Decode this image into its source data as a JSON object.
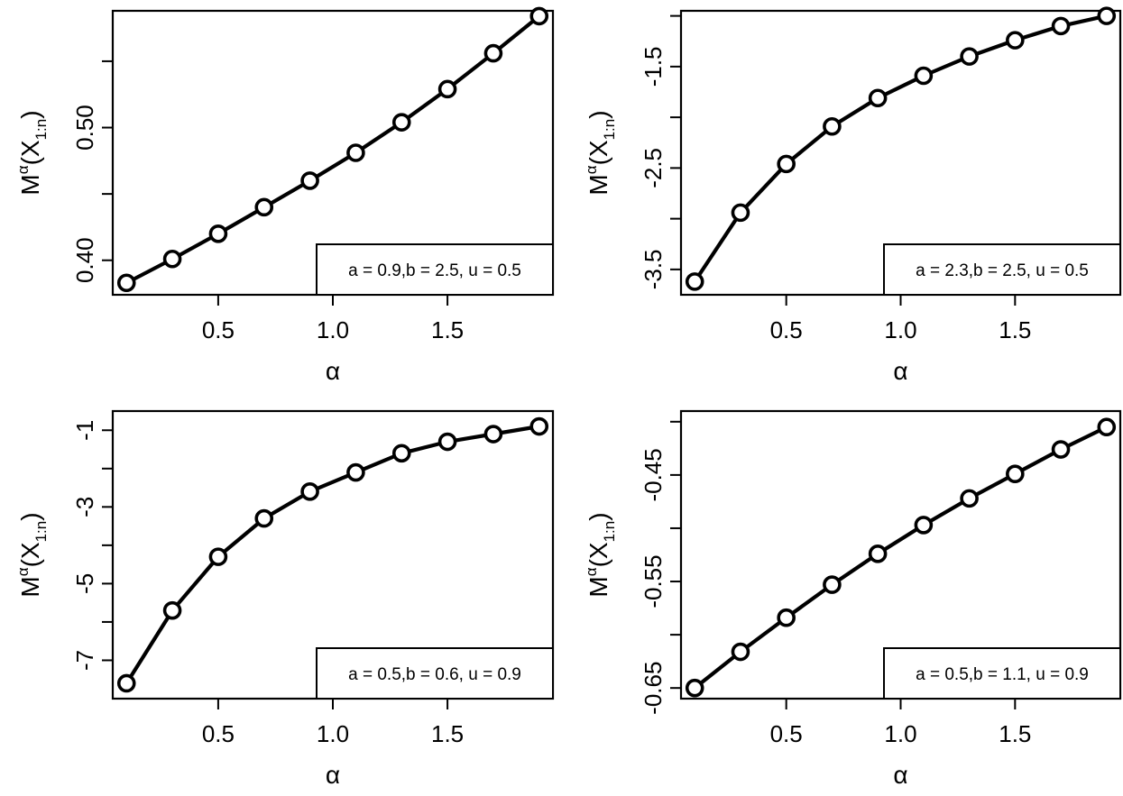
{
  "chart_data": [
    {
      "type": "line",
      "xlabel": "α",
      "ylabel": {
        "base": "M",
        "superscript": "α",
        "open": "(X",
        "subscript": "1:n",
        "close": ")"
      },
      "legend": "a = 0.9,b = 2.5, u = 0.5",
      "legend_position": "bottom-right",
      "xlim": [
        0.04,
        1.96
      ],
      "ylim": [
        0.374,
        0.588
      ],
      "xticks": [
        0.5,
        1.0,
        1.5
      ],
      "xtick_labels": [
        "0.5",
        "1.0",
        "1.5"
      ],
      "yticks": [
        0.4,
        0.45,
        0.5,
        0.55
      ],
      "ytick_labels": [
        "0.40",
        "",
        "0.50",
        ""
      ],
      "x": [
        0.1,
        0.3,
        0.5,
        0.7,
        0.9,
        1.1,
        1.3,
        1.5,
        1.7,
        1.9
      ],
      "y": [
        0.383,
        0.401,
        0.42,
        0.44,
        0.46,
        0.481,
        0.504,
        0.529,
        0.556,
        0.584
      ]
    },
    {
      "type": "line",
      "xlabel": "α",
      "ylabel": {
        "base": "M",
        "superscript": "α",
        "open": "(X",
        "subscript": "1:n",
        "close": ")"
      },
      "legend": "a = 2.3,b = 2.5, u = 0.5",
      "legend_position": "bottom-right",
      "xlim": [
        0.04,
        1.96
      ],
      "ylim": [
        -3.75,
        -0.95
      ],
      "xticks": [
        0.5,
        1.0,
        1.5
      ],
      "xtick_labels": [
        "0.5",
        "1.0",
        "1.5"
      ],
      "yticks": [
        -3.5,
        -3.0,
        -2.5,
        -2.0,
        -1.5,
        -1.0
      ],
      "ytick_labels": [
        "-3.5",
        "",
        "-2.5",
        "",
        "-1.5",
        ""
      ],
      "x": [
        0.1,
        0.3,
        0.5,
        0.7,
        0.9,
        1.1,
        1.3,
        1.5,
        1.7,
        1.9
      ],
      "y": [
        -3.62,
        -2.94,
        -2.46,
        -2.09,
        -1.81,
        -1.59,
        -1.4,
        -1.24,
        -1.1,
        -1.0
      ]
    },
    {
      "type": "line",
      "xlabel": "α",
      "ylabel": {
        "base": "M",
        "superscript": "α",
        "open": "(X",
        "subscript": "1:n",
        "close": ")"
      },
      "legend": "a = 0.5,b = 0.6, u = 0.9",
      "legend_position": "bottom-right",
      "xlim": [
        0.04,
        1.96
      ],
      "ylim": [
        -8.0,
        -0.5
      ],
      "xticks": [
        0.5,
        1.0,
        1.5
      ],
      "xtick_labels": [
        "0.5",
        "1.0",
        "1.5"
      ],
      "yticks": [
        -7,
        -6,
        -5,
        -4,
        -3,
        -2,
        -1
      ],
      "ytick_labels": [
        "-7",
        "",
        "-5",
        "",
        "-3",
        "",
        "-1"
      ],
      "x": [
        0.1,
        0.3,
        0.5,
        0.7,
        0.9,
        1.1,
        1.3,
        1.5,
        1.7,
        1.9
      ],
      "y": [
        -7.6,
        -5.7,
        -4.3,
        -3.3,
        -2.6,
        -2.1,
        -1.6,
        -1.3,
        -1.1,
        -0.9
      ]
    },
    {
      "type": "line",
      "xlabel": "α",
      "ylabel": {
        "base": "M",
        "superscript": "α",
        "open": "(X",
        "subscript": "1:n",
        "close": ")"
      },
      "legend": "a = 0.5,b = 1.1, u = 0.9",
      "legend_position": "bottom-right",
      "xlim": [
        0.04,
        1.96
      ],
      "ylim": [
        -0.66,
        -0.39
      ],
      "xticks": [
        0.5,
        1.0,
        1.5
      ],
      "xtick_labels": [
        "0.5",
        "1.0",
        "1.5"
      ],
      "yticks": [
        -0.65,
        -0.6,
        -0.55,
        -0.5,
        -0.45,
        -0.4
      ],
      "ytick_labels": [
        "-0.65",
        "",
        "-0.55",
        "",
        "-0.45",
        ""
      ],
      "x": [
        0.1,
        0.3,
        0.5,
        0.7,
        0.9,
        1.1,
        1.3,
        1.5,
        1.7,
        1.9
      ],
      "y": [
        -0.65,
        -0.616,
        -0.584,
        -0.553,
        -0.524,
        -0.497,
        -0.472,
        -0.449,
        -0.426,
        -0.405
      ]
    }
  ]
}
